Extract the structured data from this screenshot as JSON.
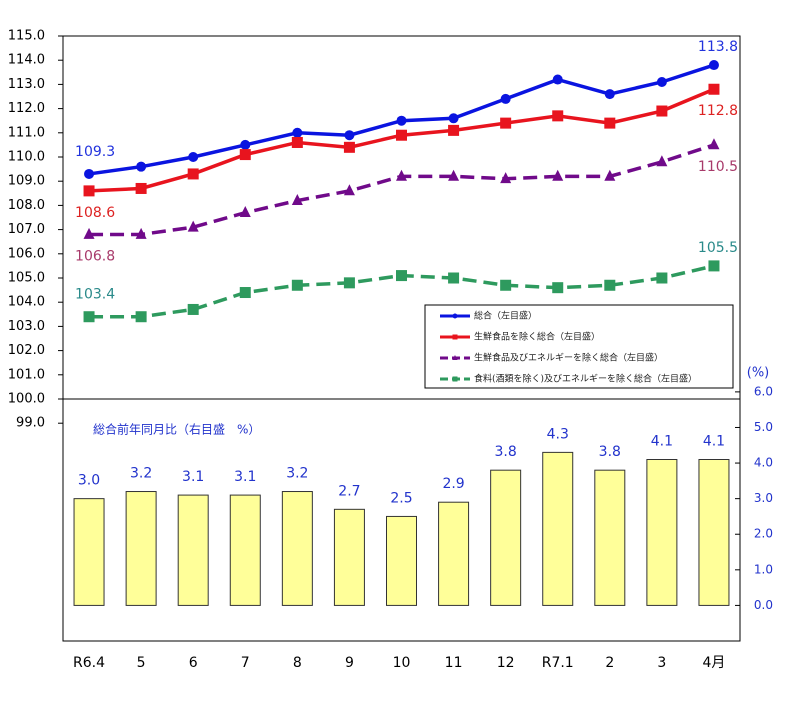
{
  "chart_data": {
    "type": "combo",
    "categories": [
      "R6.4",
      "5",
      "6",
      "7",
      "8",
      "9",
      "10",
      "11",
      "12",
      "R7.1",
      "2",
      "3",
      "4月"
    ],
    "ylim": [
      90,
      115
    ],
    "yticks": [
      {
        "value": 99,
        "label": "99.0"
      },
      {
        "value": 100,
        "label": "100.0"
      },
      {
        "value": 101,
        "label": "101.0"
      },
      {
        "value": 102,
        "label": "102.0"
      },
      {
        "value": 103,
        "label": "103.0"
      },
      {
        "value": 104,
        "label": "104.0"
      },
      {
        "value": 105,
        "label": "105.0"
      },
      {
        "value": 106,
        "label": "106.0"
      },
      {
        "value": 107,
        "label": "107.0"
      },
      {
        "value": 108,
        "label": "108.0"
      },
      {
        "value": 109,
        "label": "109.0"
      },
      {
        "value": 110,
        "label": "110.0"
      },
      {
        "value": 111,
        "label": "111.0"
      },
      {
        "value": 112,
        "label": "112.0"
      },
      {
        "value": 113,
        "label": "113.0"
      },
      {
        "value": 114,
        "label": "114.0"
      },
      {
        "value": 115,
        "label": "115.0"
      }
    ],
    "y2lim": [
      -1,
      16
    ],
    "y2label": "(%)",
    "y2ticks": [
      {
        "value": 0,
        "label": "0.0"
      },
      {
        "value": 1,
        "label": "1.0"
      },
      {
        "value": 2,
        "label": "2.0"
      },
      {
        "value": 3,
        "label": "3.0"
      },
      {
        "value": 4,
        "label": "4.0"
      },
      {
        "value": 5,
        "label": "5.0"
      },
      {
        "value": 6,
        "label": "6.0"
      }
    ],
    "series": [
      {
        "name": "総合（左目盛）",
        "type": "line",
        "color": "#0a14e0",
        "label_color": "#2233dd",
        "marker": "circle",
        "dashed": false,
        "values": [
          109.3,
          109.6,
          110.0,
          110.5,
          111.0,
          110.9,
          111.5,
          111.6,
          112.4,
          113.2,
          112.6,
          113.1,
          113.8
        ]
      },
      {
        "name": "生鮮食品を除く総合（左目盛）",
        "type": "line",
        "color": "#e8141e",
        "label_color": "#dd2222",
        "marker": "square",
        "dashed": false,
        "values": [
          108.6,
          108.7,
          109.3,
          110.1,
          110.6,
          110.4,
          110.9,
          111.1,
          111.4,
          111.7,
          111.4,
          111.9,
          112.8
        ]
      },
      {
        "name": "生鮮食品及びエネルギーを除く総合（左目盛）",
        "type": "line",
        "color": "#700a8a",
        "label_color": "#a83a6a",
        "marker": "triangle",
        "dashed": true,
        "values": [
          106.8,
          106.8,
          107.1,
          107.7,
          108.2,
          108.6,
          109.2,
          109.2,
          109.1,
          109.2,
          109.2,
          109.8,
          110.5
        ]
      },
      {
        "name": "食料(酒類を除く)及びエネルギーを除く総合（左目盛）",
        "type": "line",
        "color": "#2e9a5e",
        "label_color": "#2a8a8a",
        "marker": "square",
        "dashed": true,
        "values": [
          103.4,
          103.4,
          103.7,
          104.4,
          104.7,
          104.8,
          105.1,
          105.0,
          104.7,
          104.6,
          104.7,
          105.0,
          105.5
        ]
      },
      {
        "name": "総合前年同月比（右目盛　%）",
        "type": "bar",
        "axis": "y2",
        "color": "#ffff99",
        "label_color": "#2233cc",
        "values": [
          3.0,
          3.2,
          3.1,
          3.1,
          3.2,
          2.7,
          2.5,
          2.9,
          3.8,
          4.3,
          3.8,
          4.1,
          4.1
        ],
        "value_labels": [
          "3.0",
          "3.2",
          "3.1",
          "3.1",
          "3.2",
          "2.7",
          "2.5",
          "2.9",
          "3.8",
          "4.3",
          "3.8",
          "4.1",
          "4.1"
        ]
      }
    ]
  }
}
